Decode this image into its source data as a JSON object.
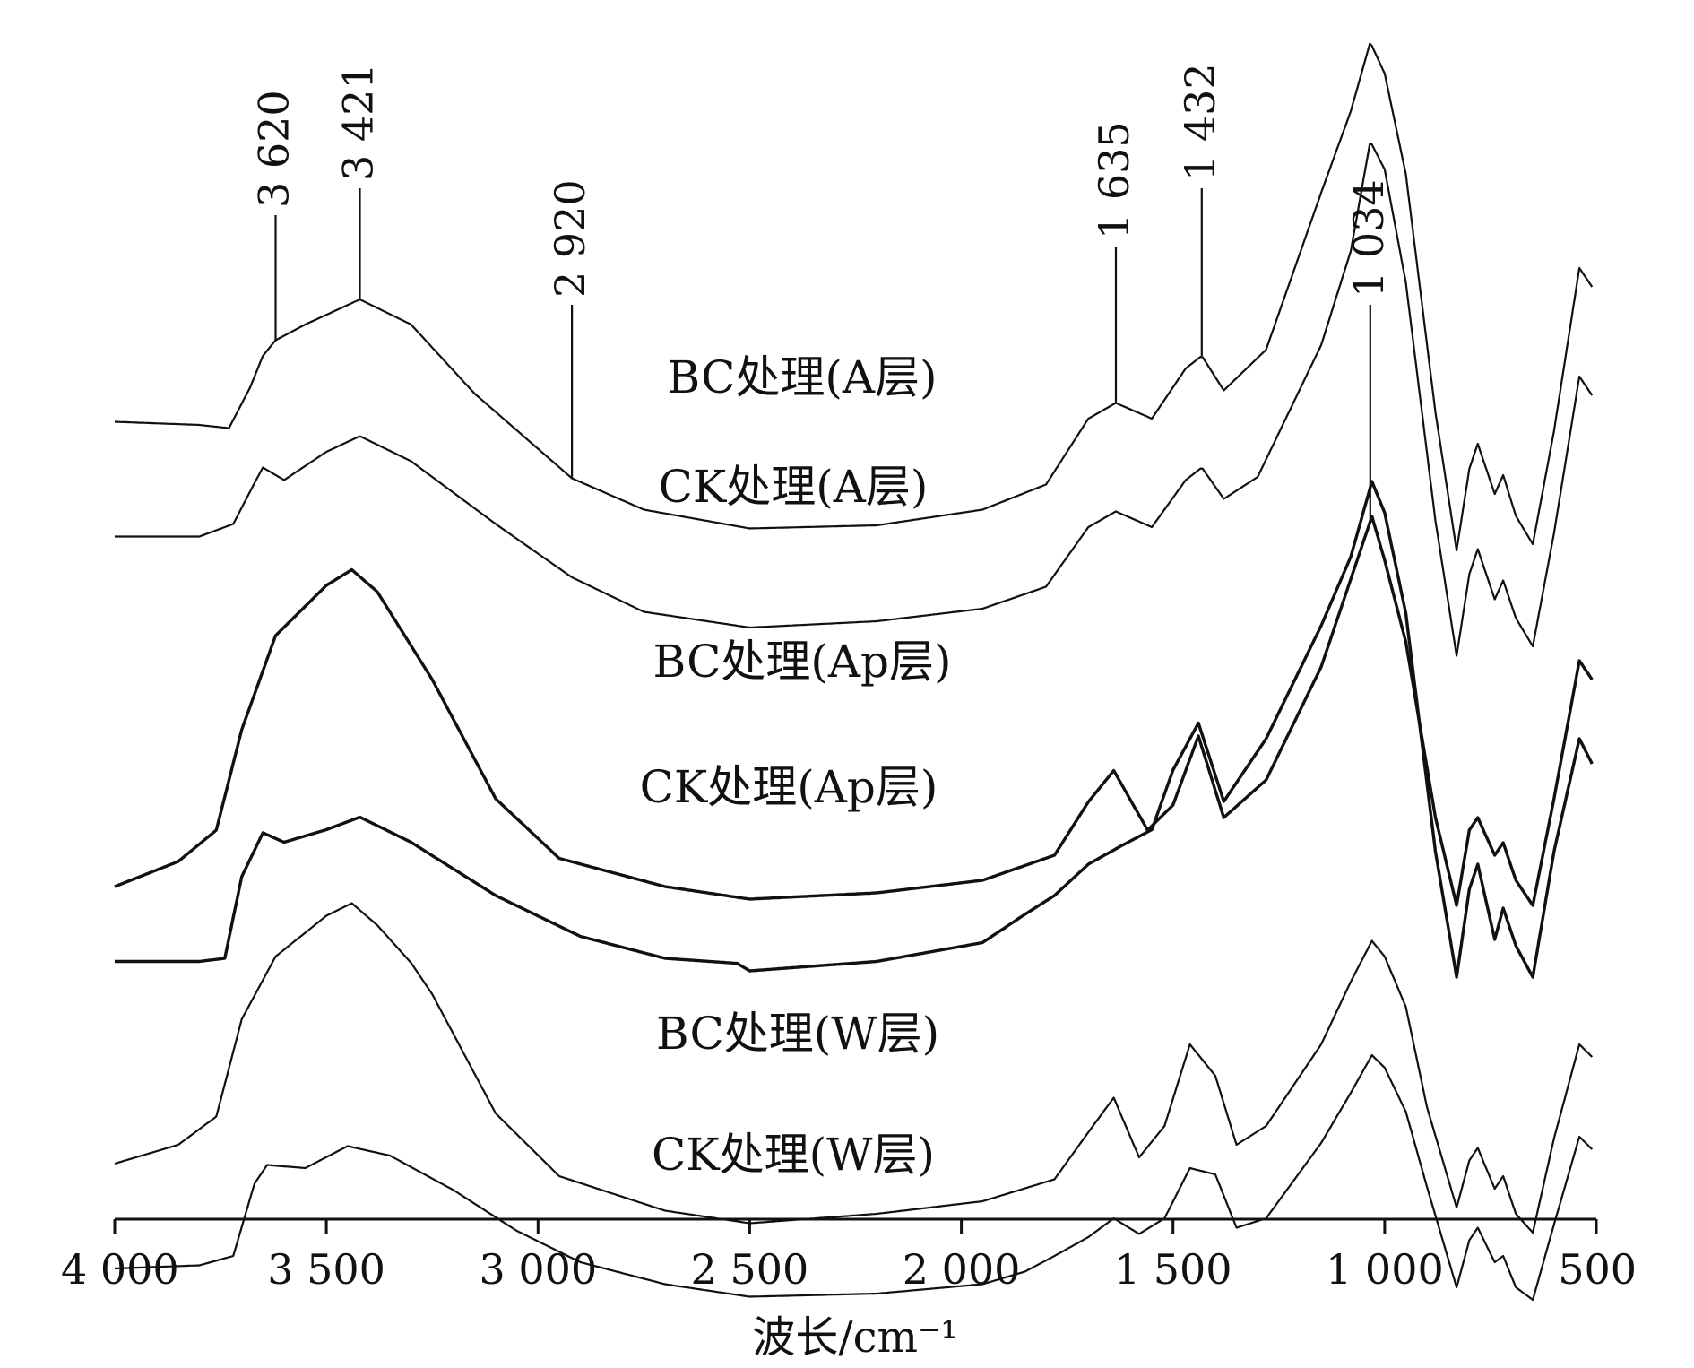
{
  "chart_data": {
    "type": "line",
    "title": "",
    "xlabel": "波长/cm⁻¹",
    "ylabel": "",
    "xlim": [
      4000,
      500
    ],
    "x_reversed": true,
    "grid": false,
    "x_ticks": [
      {
        "value": 4000,
        "label": "4 000"
      },
      {
        "value": 3500,
        "label": "3 500"
      },
      {
        "value": 3000,
        "label": "3 000"
      },
      {
        "value": 2500,
        "label": "2 500"
      },
      {
        "value": 2000,
        "label": "2 000"
      },
      {
        "value": 1500,
        "label": "1 500"
      },
      {
        "value": 1000,
        "label": "1 000"
      },
      {
        "value": 500,
        "label": "500"
      }
    ],
    "peak_annotations": [
      {
        "x": 3620,
        "label": "3 620"
      },
      {
        "x": 3421,
        "label": "3 421"
      },
      {
        "x": 2920,
        "label": "2 920"
      },
      {
        "x": 1635,
        "label": "1 635"
      },
      {
        "x": 1432,
        "label": "1 432"
      },
      {
        "x": 1034,
        "label": "1 034"
      }
    ],
    "series": [
      {
        "name": "BC处理(A层)",
        "color": "#111111",
        "points": [
          [
            4000,
            0.185
          ],
          [
            3800,
            0.18
          ],
          [
            3730,
            0.175
          ],
          [
            3680,
            0.24
          ],
          [
            3650,
            0.29
          ],
          [
            3620,
            0.315
          ],
          [
            3550,
            0.34
          ],
          [
            3421,
            0.38
          ],
          [
            3300,
            0.34
          ],
          [
            3150,
            0.23
          ],
          [
            2920,
            0.095
          ],
          [
            2750,
            0.045
          ],
          [
            2500,
            0.015
          ],
          [
            2200,
            0.02
          ],
          [
            1950,
            0.045
          ],
          [
            1800,
            0.085
          ],
          [
            1700,
            0.19
          ],
          [
            1635,
            0.215
          ],
          [
            1550,
            0.19
          ],
          [
            1470,
            0.27
          ],
          [
            1432,
            0.29
          ],
          [
            1380,
            0.235
          ],
          [
            1280,
            0.3
          ],
          [
            1150,
            0.55
          ],
          [
            1080,
            0.68
          ],
          [
            1034,
            0.79
          ],
          [
            1000,
            0.74
          ],
          [
            950,
            0.58
          ],
          [
            880,
            0.2
          ],
          [
            830,
            -0.02
          ],
          [
            800,
            0.11
          ],
          [
            780,
            0.15
          ],
          [
            740,
            0.07
          ],
          [
            720,
            0.1
          ],
          [
            690,
            0.035
          ],
          [
            650,
            -0.01
          ],
          [
            600,
            0.17
          ],
          [
            540,
            0.43
          ],
          [
            510,
            0.4
          ]
        ]
      },
      {
        "name": "CK处理(A层)",
        "color": "#111111",
        "points": [
          [
            4000,
            0.145
          ],
          [
            3800,
            0.145
          ],
          [
            3720,
            0.165
          ],
          [
            3670,
            0.23
          ],
          [
            3650,
            0.255
          ],
          [
            3600,
            0.235
          ],
          [
            3500,
            0.28
          ],
          [
            3421,
            0.305
          ],
          [
            3300,
            0.265
          ],
          [
            3100,
            0.165
          ],
          [
            2920,
            0.08
          ],
          [
            2750,
            0.025
          ],
          [
            2500,
            0.0
          ],
          [
            2200,
            0.01
          ],
          [
            1950,
            0.03
          ],
          [
            1800,
            0.065
          ],
          [
            1700,
            0.16
          ],
          [
            1635,
            0.185
          ],
          [
            1550,
            0.16
          ],
          [
            1470,
            0.235
          ],
          [
            1432,
            0.255
          ],
          [
            1380,
            0.205
          ],
          [
            1300,
            0.24
          ],
          [
            1150,
            0.45
          ],
          [
            1080,
            0.6
          ],
          [
            1034,
            0.775
          ],
          [
            1000,
            0.73
          ],
          [
            950,
            0.55
          ],
          [
            880,
            0.17
          ],
          [
            830,
            -0.045
          ],
          [
            800,
            0.085
          ],
          [
            780,
            0.125
          ],
          [
            740,
            0.045
          ],
          [
            720,
            0.075
          ],
          [
            690,
            0.015
          ],
          [
            650,
            -0.03
          ],
          [
            600,
            0.15
          ],
          [
            540,
            0.4
          ],
          [
            510,
            0.37
          ]
        ]
      },
      {
        "name": "BC处理(Ap层)",
        "color": "#111111",
        "points": [
          [
            4000,
            0.03
          ],
          [
            3850,
            0.07
          ],
          [
            3760,
            0.12
          ],
          [
            3700,
            0.28
          ],
          [
            3620,
            0.43
          ],
          [
            3500,
            0.51
          ],
          [
            3440,
            0.535
          ],
          [
            3380,
            0.5
          ],
          [
            3250,
            0.36
          ],
          [
            3100,
            0.17
          ],
          [
            2950,
            0.075
          ],
          [
            2700,
            0.03
          ],
          [
            2500,
            0.01
          ],
          [
            2200,
            0.02
          ],
          [
            1950,
            0.04
          ],
          [
            1780,
            0.08
          ],
          [
            1700,
            0.165
          ],
          [
            1640,
            0.215
          ],
          [
            1560,
            0.12
          ],
          [
            1500,
            0.16
          ],
          [
            1440,
            0.27
          ],
          [
            1380,
            0.14
          ],
          [
            1280,
            0.2
          ],
          [
            1150,
            0.38
          ],
          [
            1080,
            0.52
          ],
          [
            1030,
            0.62
          ],
          [
            1000,
            0.55
          ],
          [
            950,
            0.42
          ],
          [
            880,
            0.14
          ],
          [
            830,
            0.0
          ],
          [
            800,
            0.12
          ],
          [
            780,
            0.14
          ],
          [
            740,
            0.08
          ],
          [
            720,
            0.1
          ],
          [
            690,
            0.04
          ],
          [
            650,
            0.0
          ],
          [
            600,
            0.17
          ],
          [
            540,
            0.39
          ],
          [
            510,
            0.36
          ]
        ]
      },
      {
        "name": "CK处理(Ap层)",
        "color": "#111111",
        "points": [
          [
            4000,
            0.025
          ],
          [
            3800,
            0.025
          ],
          [
            3740,
            0.03
          ],
          [
            3700,
            0.16
          ],
          [
            3650,
            0.23
          ],
          [
            3600,
            0.215
          ],
          [
            3500,
            0.235
          ],
          [
            3421,
            0.255
          ],
          [
            3300,
            0.215
          ],
          [
            3100,
            0.13
          ],
          [
            2900,
            0.065
          ],
          [
            2700,
            0.03
          ],
          [
            2530,
            0.022
          ],
          [
            2500,
            0.01
          ],
          [
            2200,
            0.025
          ],
          [
            1950,
            0.055
          ],
          [
            1850,
            0.1
          ],
          [
            1780,
            0.13
          ],
          [
            1700,
            0.18
          ],
          [
            1620,
            0.21
          ],
          [
            1550,
            0.235
          ],
          [
            1500,
            0.33
          ],
          [
            1440,
            0.405
          ],
          [
            1380,
            0.28
          ],
          [
            1280,
            0.38
          ],
          [
            1150,
            0.56
          ],
          [
            1080,
            0.67
          ],
          [
            1030,
            0.79
          ],
          [
            1000,
            0.74
          ],
          [
            950,
            0.58
          ],
          [
            880,
            0.2
          ],
          [
            830,
            0.0
          ],
          [
            800,
            0.14
          ],
          [
            780,
            0.18
          ],
          [
            740,
            0.06
          ],
          [
            720,
            0.11
          ],
          [
            690,
            0.05
          ],
          [
            650,
            0.0
          ],
          [
            600,
            0.2
          ],
          [
            540,
            0.38
          ],
          [
            510,
            0.34
          ]
        ]
      },
      {
        "name": "BC处理(W层)",
        "color": "#111111",
        "points": [
          [
            4000,
            0.11
          ],
          [
            3850,
            0.14
          ],
          [
            3760,
            0.185
          ],
          [
            3700,
            0.34
          ],
          [
            3620,
            0.44
          ],
          [
            3500,
            0.505
          ],
          [
            3440,
            0.525
          ],
          [
            3380,
            0.49
          ],
          [
            3300,
            0.43
          ],
          [
            3250,
            0.38
          ],
          [
            3100,
            0.19
          ],
          [
            2950,
            0.09
          ],
          [
            2700,
            0.035
          ],
          [
            2500,
            0.015
          ],
          [
            2200,
            0.03
          ],
          [
            1950,
            0.05
          ],
          [
            1780,
            0.085
          ],
          [
            1700,
            0.16
          ],
          [
            1640,
            0.215
          ],
          [
            1580,
            0.12
          ],
          [
            1520,
            0.17
          ],
          [
            1460,
            0.3
          ],
          [
            1400,
            0.25
          ],
          [
            1350,
            0.14
          ],
          [
            1280,
            0.17
          ],
          [
            1150,
            0.3
          ],
          [
            1080,
            0.4
          ],
          [
            1030,
            0.465
          ],
          [
            1000,
            0.44
          ],
          [
            950,
            0.36
          ],
          [
            900,
            0.2
          ],
          [
            830,
            0.04
          ],
          [
            800,
            0.115
          ],
          [
            780,
            0.135
          ],
          [
            740,
            0.07
          ],
          [
            720,
            0.09
          ],
          [
            690,
            0.03
          ],
          [
            650,
            0.0
          ],
          [
            600,
            0.15
          ],
          [
            540,
            0.3
          ],
          [
            510,
            0.28
          ]
        ]
      },
      {
        "name": "CK处理(W层)",
        "color": "#111111",
        "points": [
          [
            4000,
            0.05
          ],
          [
            3800,
            0.055
          ],
          [
            3720,
            0.07
          ],
          [
            3670,
            0.185
          ],
          [
            3640,
            0.215
          ],
          [
            3550,
            0.21
          ],
          [
            3450,
            0.245
          ],
          [
            3350,
            0.23
          ],
          [
            3200,
            0.175
          ],
          [
            3050,
            0.11
          ],
          [
            2900,
            0.06
          ],
          [
            2700,
            0.025
          ],
          [
            2500,
            0.005
          ],
          [
            2200,
            0.01
          ],
          [
            1950,
            0.025
          ],
          [
            1850,
            0.045
          ],
          [
            1780,
            0.07
          ],
          [
            1700,
            0.1
          ],
          [
            1640,
            0.13
          ],
          [
            1580,
            0.105
          ],
          [
            1520,
            0.13
          ],
          [
            1460,
            0.21
          ],
          [
            1400,
            0.2
          ],
          [
            1350,
            0.115
          ],
          [
            1280,
            0.13
          ],
          [
            1150,
            0.25
          ],
          [
            1080,
            0.33
          ],
          [
            1030,
            0.39
          ],
          [
            1000,
            0.37
          ],
          [
            950,
            0.3
          ],
          [
            900,
            0.18
          ],
          [
            830,
            0.02
          ],
          [
            800,
            0.095
          ],
          [
            780,
            0.115
          ],
          [
            740,
            0.06
          ],
          [
            720,
            0.07
          ],
          [
            690,
            0.02
          ],
          [
            650,
            0.0
          ],
          [
            600,
            0.12
          ],
          [
            540,
            0.26
          ],
          [
            510,
            0.24
          ]
        ]
      }
    ]
  }
}
